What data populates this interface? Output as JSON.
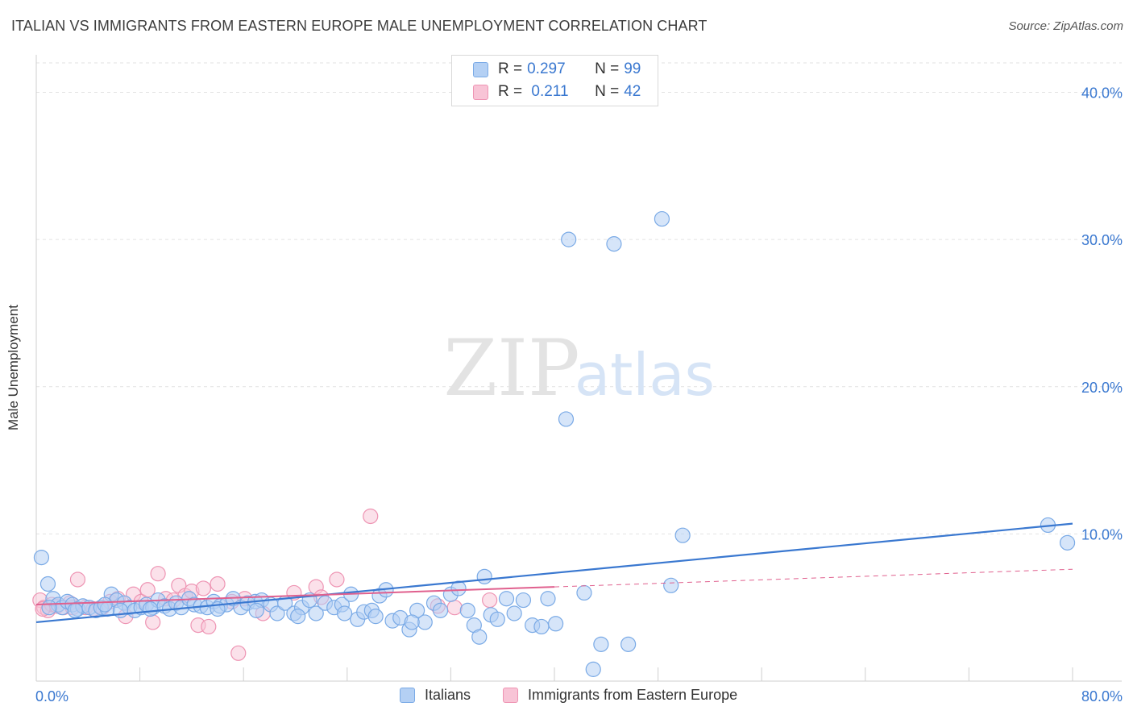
{
  "header": {
    "title": "ITALIAN VS IMMIGRANTS FROM EASTERN EUROPE MALE UNEMPLOYMENT CORRELATION CHART",
    "source": "Source: ZipAtlas.com"
  },
  "watermark": {
    "zip": "ZIP",
    "atlas": "atlas"
  },
  "legend": {
    "rows": [
      {
        "r_label": "R = ",
        "r_value": "0.297",
        "n_label": "N = ",
        "n_value": "99"
      },
      {
        "r_label": "R = ",
        "r_value": " 0.211",
        "n_label": "N = ",
        "n_value": "42"
      }
    ]
  },
  "colors": {
    "series1_fill": "#b4d0f4",
    "series1_stroke": "#7aaae6",
    "series1_line": "#3a78d0",
    "series2_fill": "#f8c4d6",
    "series2_stroke": "#ee94b3",
    "series2_line": "#e0608e",
    "grid": "#e2e2e2",
    "axis_text": "#3a78d0"
  },
  "chart_data": {
    "type": "scatter",
    "title": "ITALIAN VS IMMIGRANTS FROM EASTERN EUROPE MALE UNEMPLOYMENT CORRELATION CHART",
    "xlabel": "",
    "ylabel": "Male Unemployment",
    "xlim": [
      0,
      80
    ],
    "ylim": [
      0,
      42
    ],
    "x_tick_labels": [
      "0.0%",
      "80.0%"
    ],
    "y_ticks": [
      10,
      20,
      30,
      40
    ],
    "y_tick_labels": [
      "10.0%",
      "20.0%",
      "30.0%",
      "40.0%"
    ],
    "grid": true,
    "legend_position": "top-center",
    "series": [
      {
        "name": "Italians",
        "r": 0.297,
        "n": 99,
        "trend": {
          "x0": 0,
          "y0": 4.0,
          "x1": 80,
          "y1": 10.7,
          "dashed_extension": false
        },
        "points": [
          [
            0.4,
            8.4
          ],
          [
            0.9,
            6.6
          ],
          [
            1.3,
            5.6
          ],
          [
            1.7,
            5.2
          ],
          [
            2.0,
            5.0
          ],
          [
            2.4,
            5.4
          ],
          [
            2.8,
            5.2
          ],
          [
            3.2,
            4.9
          ],
          [
            3.6,
            5.1
          ],
          [
            4.1,
            5.0
          ],
          [
            4.6,
            4.8
          ],
          [
            5.0,
            5.0
          ],
          [
            5.5,
            4.9
          ],
          [
            5.8,
            5.9
          ],
          [
            6.2,
            5.5
          ],
          [
            6.8,
            5.3
          ],
          [
            7.2,
            5.0
          ],
          [
            7.6,
            4.8
          ],
          [
            8.1,
            5.0
          ],
          [
            8.5,
            5.2
          ],
          [
            9.0,
            5.0
          ],
          [
            9.4,
            5.5
          ],
          [
            9.9,
            5.1
          ],
          [
            10.3,
            4.9
          ],
          [
            10.8,
            5.3
          ],
          [
            11.2,
            5.0
          ],
          [
            11.8,
            5.6
          ],
          [
            12.2,
            5.2
          ],
          [
            12.7,
            5.1
          ],
          [
            13.2,
            5.0
          ],
          [
            13.7,
            5.4
          ],
          [
            14.2,
            5.1
          ],
          [
            14.7,
            5.2
          ],
          [
            15.2,
            5.6
          ],
          [
            15.8,
            5.0
          ],
          [
            16.3,
            5.3
          ],
          [
            16.9,
            5.4
          ],
          [
            17.4,
            5.5
          ],
          [
            18.1,
            5.2
          ],
          [
            18.6,
            4.6
          ],
          [
            19.2,
            5.3
          ],
          [
            19.9,
            4.6
          ],
          [
            20.5,
            5.0
          ],
          [
            21.1,
            5.5
          ],
          [
            21.6,
            4.6
          ],
          [
            22.3,
            5.3
          ],
          [
            23.0,
            5.0
          ],
          [
            23.6,
            5.2
          ],
          [
            24.3,
            5.9
          ],
          [
            24.8,
            4.2
          ],
          [
            25.3,
            4.7
          ],
          [
            25.9,
            4.8
          ],
          [
            26.5,
            5.8
          ],
          [
            27.0,
            6.2
          ],
          [
            27.5,
            4.1
          ],
          [
            28.1,
            4.3
          ],
          [
            28.8,
            3.5
          ],
          [
            29.4,
            4.8
          ],
          [
            30.0,
            4.0
          ],
          [
            30.7,
            5.3
          ],
          [
            31.2,
            4.8
          ],
          [
            32.0,
            5.9
          ],
          [
            32.6,
            6.3
          ],
          [
            33.3,
            4.8
          ],
          [
            33.8,
            3.8
          ],
          [
            34.2,
            3.0
          ],
          [
            34.6,
            7.1
          ],
          [
            35.1,
            4.5
          ],
          [
            35.6,
            4.2
          ],
          [
            36.3,
            5.6
          ],
          [
            36.9,
            4.6
          ],
          [
            37.6,
            5.5
          ],
          [
            38.3,
            3.8
          ],
          [
            39.0,
            3.7
          ],
          [
            39.5,
            5.6
          ],
          [
            40.1,
            3.9
          ],
          [
            40.9,
            17.8
          ],
          [
            41.1,
            30.0
          ],
          [
            42.3,
            6.0
          ],
          [
            43.0,
            0.8
          ],
          [
            43.6,
            2.5
          ],
          [
            44.6,
            29.7
          ],
          [
            45.7,
            2.5
          ],
          [
            48.3,
            31.4
          ],
          [
            49.0,
            6.5
          ],
          [
            49.9,
            9.9
          ],
          [
            78.1,
            10.6
          ],
          [
            79.6,
            9.4
          ],
          [
            1.0,
            5.0
          ],
          [
            3.0,
            4.8
          ],
          [
            5.3,
            5.2
          ],
          [
            6.5,
            4.8
          ],
          [
            8.8,
            4.9
          ],
          [
            14.0,
            4.9
          ],
          [
            17.0,
            4.8
          ],
          [
            20.2,
            4.4
          ],
          [
            23.8,
            4.6
          ],
          [
            26.2,
            4.4
          ],
          [
            29.0,
            4.0
          ]
        ]
      },
      {
        "name": "Immigrants from Eastern Europe",
        "r": 0.211,
        "n": 42,
        "trend": {
          "x0": 0,
          "y0": 5.2,
          "x1": 40,
          "y1": 6.4,
          "dashed_to_x": 80,
          "dashed_to_y": 7.6
        },
        "points": [
          [
            0.3,
            5.5
          ],
          [
            0.6,
            5.0
          ],
          [
            0.9,
            4.8
          ],
          [
            1.2,
            5.2
          ],
          [
            1.6,
            5.1
          ],
          [
            2.1,
            5.0
          ],
          [
            2.6,
            5.3
          ],
          [
            3.2,
            6.9
          ],
          [
            3.8,
            5.0
          ],
          [
            4.4,
            4.9
          ],
          [
            5.1,
            5.0
          ],
          [
            5.7,
            5.4
          ],
          [
            6.3,
            5.6
          ],
          [
            6.9,
            4.4
          ],
          [
            7.5,
            5.9
          ],
          [
            8.1,
            5.4
          ],
          [
            8.6,
            6.2
          ],
          [
            9.0,
            4.0
          ],
          [
            9.4,
            7.3
          ],
          [
            10.0,
            5.6
          ],
          [
            10.6,
            5.5
          ],
          [
            11.0,
            6.5
          ],
          [
            11.5,
            5.8
          ],
          [
            12.0,
            6.1
          ],
          [
            12.5,
            3.8
          ],
          [
            12.9,
            6.3
          ],
          [
            13.3,
            3.7
          ],
          [
            14.0,
            6.6
          ],
          [
            15.1,
            5.4
          ],
          [
            15.6,
            1.9
          ],
          [
            16.1,
            5.6
          ],
          [
            17.5,
            4.6
          ],
          [
            19.9,
            6.0
          ],
          [
            21.6,
            6.4
          ],
          [
            22.0,
            5.7
          ],
          [
            23.2,
            6.9
          ],
          [
            25.8,
            11.2
          ],
          [
            31.0,
            5.1
          ],
          [
            32.3,
            5.0
          ],
          [
            35.0,
            5.5
          ],
          [
            0.5,
            4.9
          ],
          [
            2.8,
            5.0
          ]
        ]
      }
    ]
  },
  "bottom_legend": {
    "items": [
      {
        "label": "Italians"
      },
      {
        "label": "Immigrants from Eastern Europe"
      }
    ]
  }
}
